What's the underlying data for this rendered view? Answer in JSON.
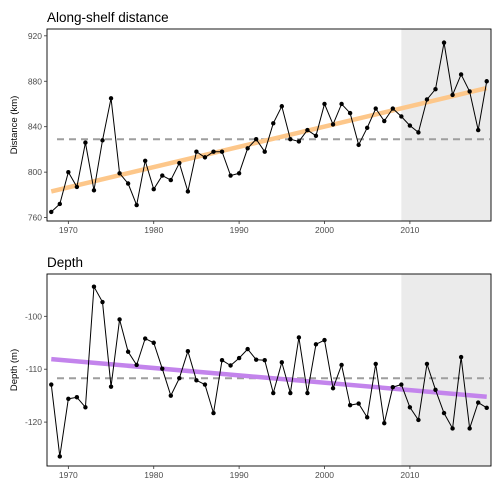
{
  "chart_data": [
    {
      "type": "line",
      "title": "Along-shelf distance",
      "xlabel": "",
      "ylabel": "Distance (km)",
      "xlim": [
        1967.5,
        2019.5
      ],
      "ylim": [
        757,
        926
      ],
      "xticks": [
        1970,
        1980,
        1990,
        2000,
        2010
      ],
      "yticks": [
        760,
        800,
        840,
        880,
        920
      ],
      "grid": false,
      "shaded_region": {
        "x": [
          2009,
          2019.5
        ],
        "color": "#ebebeb"
      },
      "reference_line": {
        "y": 829,
        "style": "dashed",
        "color": "#9e9e9e"
      },
      "trend_line": {
        "x": [
          1968,
          2019
        ],
        "y": [
          783,
          874
        ],
        "color": "#fdc78a"
      },
      "series": [
        {
          "x": [
            1968,
            1969,
            1970,
            1971,
            1972,
            1973,
            1974,
            1975,
            1976,
            1977,
            1978,
            1979,
            1980,
            1981,
            1982,
            1983,
            1984,
            1985,
            1986,
            1987,
            1988,
            1989,
            1990,
            1991,
            1992,
            1993,
            1994,
            1995,
            1996,
            1997,
            1998,
            1999,
            2000,
            2001,
            2002,
            2003,
            2004,
            2005,
            2006,
            2007,
            2008,
            2009,
            2010,
            2011,
            2012,
            2013,
            2014,
            2015,
            2016,
            2017,
            2018,
            2019
          ],
          "values": [
            765,
            772,
            800,
            787,
            826,
            784,
            828,
            865,
            799,
            790,
            771,
            810,
            785,
            797,
            793,
            808,
            783,
            818,
            813,
            818,
            818,
            797,
            799,
            821,
            829,
            818,
            843,
            858,
            829,
            827,
            837,
            832,
            860,
            842,
            860,
            852,
            824,
            839,
            856,
            845,
            856,
            849,
            841,
            835,
            864,
            873,
            914,
            868,
            886,
            871,
            837,
            880
          ]
        }
      ]
    },
    {
      "type": "line",
      "title": "Depth",
      "xlabel": "",
      "ylabel": "Depth (m)",
      "xlim": [
        1967.5,
        2019.5
      ],
      "ylim": [
        -128.3,
        -92
      ],
      "xticks": [
        1970,
        1980,
        1990,
        2000,
        2010
      ],
      "yticks": [
        -100,
        -110,
        -120
      ],
      "grid": false,
      "shaded_region": {
        "x": [
          2009,
          2019.5
        ],
        "color": "#ebebeb"
      },
      "reference_line": {
        "y": -111.7,
        "style": "dashed",
        "color": "#9e9e9e"
      },
      "trend_line": {
        "x": [
          1968,
          2019
        ],
        "y": [
          -108.1,
          -115.2
        ],
        "color": "#c384ec"
      },
      "series": [
        {
          "x": [
            1968,
            1969,
            1970,
            1971,
            1972,
            1973,
            1974,
            1975,
            1976,
            1977,
            1978,
            1979,
            1980,
            1981,
            1982,
            1983,
            1984,
            1985,
            1986,
            1987,
            1988,
            1989,
            1990,
            1991,
            1992,
            1993,
            1994,
            1995,
            1996,
            1997,
            1998,
            1999,
            2000,
            2001,
            2002,
            2003,
            2004,
            2005,
            2006,
            2007,
            2008,
            2009,
            2010,
            2011,
            2012,
            2013,
            2014,
            2015,
            2016,
            2017,
            2018,
            2019
          ],
          "values": [
            -112.9,
            -126.5,
            -115.6,
            -115.3,
            -117.2,
            -94.4,
            -97.3,
            -113.3,
            -100.6,
            -106.7,
            -109.2,
            -104.2,
            -105.0,
            -109.9,
            -115.0,
            -111.7,
            -106.6,
            -112.1,
            -112.9,
            -118.3,
            -108.3,
            -109.3,
            -107.9,
            -106.2,
            -108.2,
            -108.3,
            -114.5,
            -108.7,
            -114.5,
            -104.0,
            -114.5,
            -105.3,
            -104.5,
            -113.6,
            -109.2,
            -116.8,
            -116.5,
            -119.1,
            -109.0,
            -120.2,
            -113.4,
            -112.9,
            -117.2,
            -119.6,
            -109.0,
            -113.9,
            -118.3,
            -121.2,
            -107.7,
            -121.2,
            -116.3,
            -117.3
          ]
        }
      ]
    }
  ]
}
